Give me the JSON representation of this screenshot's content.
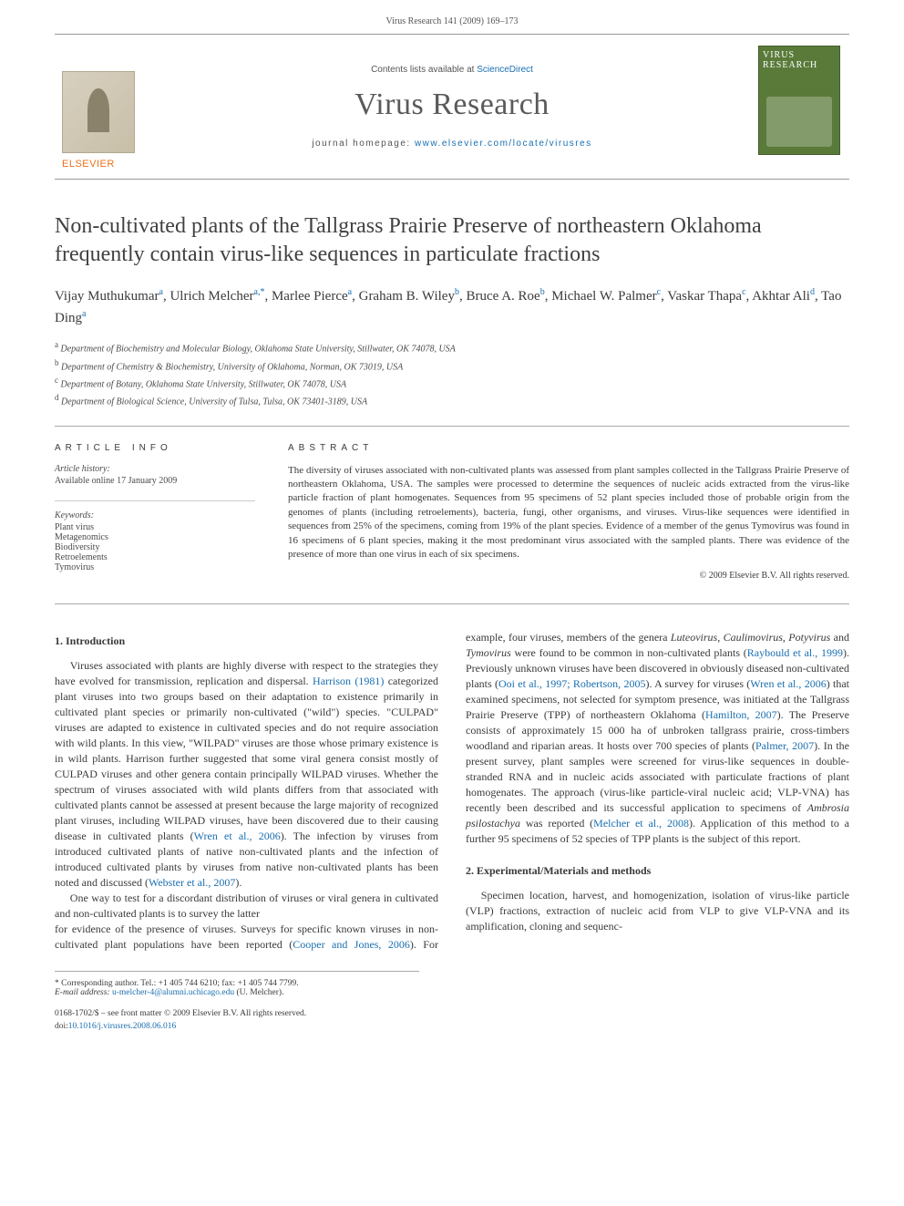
{
  "pageHeader": "Virus Research 141 (2009) 169–173",
  "masthead": {
    "publisherLabel": "ELSEVIER",
    "contentsPrefix": "Contents lists available at ",
    "contentsLink": "ScienceDirect",
    "journalTitle": "Virus Research",
    "homepagePrefix": "journal homepage: ",
    "homepageUrl": "www.elsevier.com/locate/virusres",
    "coverLabelTop": "VIRUS",
    "coverLabelBottom": "RESEARCH"
  },
  "article": {
    "title": "Non-cultivated plants of the Tallgrass Prairie Preserve of northeastern Oklahoma frequently contain virus-like sequences in particulate fractions",
    "authorsHtml": "Vijay Muthukumar<sup>a</sup>, Ulrich Melcher<sup>a,*</sup>, Marlee Pierce<sup>a</sup>, Graham B. Wiley<sup>b</sup>, Bruce A. Roe<sup>b</sup>, Michael W. Palmer<sup>c</sup>, Vaskar Thapa<sup>c</sup>, Akhtar Ali<sup>d</sup>, Tao Ding<sup>a</sup>",
    "affiliations": [
      "a Department of Biochemistry and Molecular Biology, Oklahoma State University, Stillwater, OK 74078, USA",
      "b Department of Chemistry & Biochemistry, University of Oklahoma, Norman, OK 73019, USA",
      "c Department of Botany, Oklahoma State University, Stillwater, OK 74078, USA",
      "d Department of Biological Science, University of Tulsa, Tulsa, OK 73401-3189, USA"
    ]
  },
  "info": {
    "heading": "ARTICLE INFO",
    "historyLabel": "Article history:",
    "historyLine": "Available online 17 January 2009",
    "keywordsLabel": "Keywords:",
    "keywords": [
      "Plant virus",
      "Metagenomics",
      "Biodiversity",
      "Retroelements",
      "Tymovirus"
    ]
  },
  "abstract": {
    "heading": "ABSTRACT",
    "text": "The diversity of viruses associated with non-cultivated plants was assessed from plant samples collected in the Tallgrass Prairie Preserve of northeastern Oklahoma, USA. The samples were processed to determine the sequences of nucleic acids extracted from the virus-like particle fraction of plant homogenates. Sequences from 95 specimens of 52 plant species included those of probable origin from the genomes of plants (including retroelements), bacteria, fungi, other organisms, and viruses. Virus-like sequences were identified in sequences from 25% of the specimens, coming from 19% of the plant species. Evidence of a member of the genus Tymovirus was found in 16 specimens of 6 plant species, making it the most predominant virus associated with the sampled plants. There was evidence of the presence of more than one virus in each of six specimens.",
    "copyright": "© 2009 Elsevier B.V. All rights reserved."
  },
  "sections": {
    "s1": {
      "heading": "1. Introduction",
      "p1": "Viruses associated with plants are highly diverse with respect to the strategies they have evolved for transmission, replication and dispersal. <a>Harrison (1981)</a> categorized plant viruses into two groups based on their adaptation to existence primarily in cultivated plant species or primarily non-cultivated (\"wild\") species. \"CULPAD\" viruses are adapted to existence in cultivated species and do not require association with wild plants. In this view, \"WILPAD\" viruses are those whose primary existence is in wild plants. Harrison further suggested that some viral genera consist mostly of CULPAD viruses and other genera contain principally WILPAD viruses. Whether the spectrum of viruses associated with wild plants differs from that associated with cultivated plants cannot be assessed at present because the large majority of recognized plant viruses, including WILPAD viruses, have been discovered due to their causing disease in cultivated plants (<a>Wren et al., 2006</a>). The infection by viruses from introduced cultivated plants of native non-cultivated plants and the infection of introduced cultivated plants by viruses from native non-cultivated plants has been noted and discussed (<a>Webster et al., 2007</a>).",
      "p2": "One way to test for a discordant distribution of viruses or viral genera in cultivated and non-cultivated plants is to survey the latter",
      "p3": "for evidence of the presence of viruses. Surveys for specific known viruses in non-cultivated plant populations have been reported (<a>Cooper and Jones, 2006</a>). For example, four viruses, members of the genera <i>Luteovirus</i>, <i>Caulimovirus</i>, <i>Potyvirus</i> and <i>Tymovirus</i> were found to be common in non-cultivated plants (<a>Raybould et al., 1999</a>). Previously unknown viruses have been discovered in obviously diseased non-cultivated plants (<a>Ooi et al., 1997; Robertson, 2005</a>). A survey for viruses (<a>Wren et al., 2006</a>) that examined specimens, not selected for symptom presence, was initiated at the Tallgrass Prairie Preserve (TPP) of northeastern Oklahoma (<a>Hamilton, 2007</a>). The Preserve consists of approximately 15 000 ha of unbroken tallgrass prairie, cross-timbers woodland and riparian areas. It hosts over 700 species of plants (<a>Palmer, 2007</a>). In the present survey, plant samples were screened for virus-like sequences in double-stranded RNA and in nucleic acids associated with particulate fractions of plant homogenates. The approach (virus-like particle-viral nucleic acid; VLP-VNA) has recently been described and its successful application to specimens of <i>Ambrosia psilostachya</i> was reported (<a>Melcher et al., 2008</a>). Application of this method to a further 95 specimens of 52 species of TPP plants is the subject of this report."
    },
    "s2": {
      "heading": "2. Experimental/Materials and methods",
      "p1": "Specimen location, harvest, and homogenization, isolation of virus-like particle (VLP) fractions, extraction of nucleic acid from VLP to give VLP-VNA and its amplification, cloning and sequenc-"
    }
  },
  "footnotes": {
    "corrLabel": "* Corresponding author. Tel.: +1 405 744 6210; fax: +1 405 744 7799.",
    "emailLabel": "E-mail address:",
    "email": "u-melcher-4@alumni.uchicago.edu",
    "emailSuffix": "(U. Melcher)."
  },
  "footer": {
    "line1": "0168-1702/$ – see front matter © 2009 Elsevier B.V. All rights reserved.",
    "doiLabel": "doi:",
    "doi": "10.1016/j.virusres.2008.06.016"
  }
}
